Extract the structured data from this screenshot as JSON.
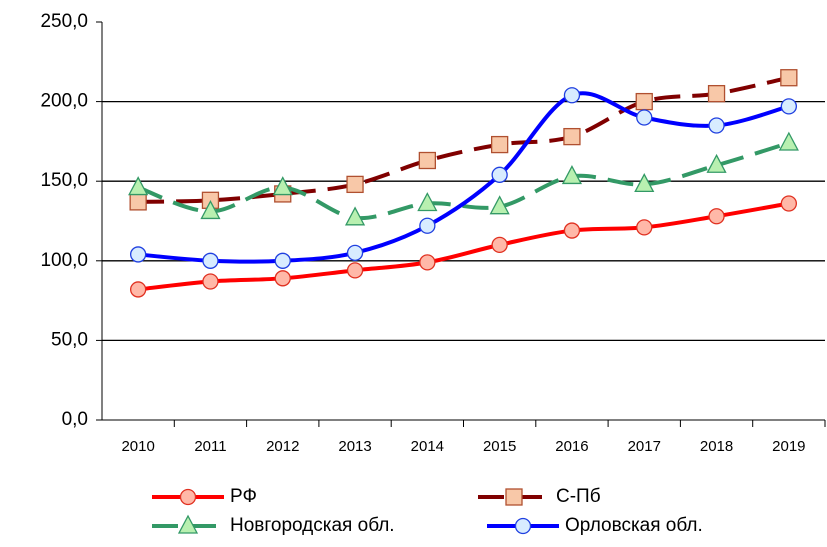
{
  "chart_data": {
    "type": "line",
    "categories": [
      "2010",
      "2011",
      "2012",
      "2013",
      "2014",
      "2015",
      "2016",
      "2017",
      "2018",
      "2019"
    ],
    "series": [
      {
        "name": "РФ",
        "color": "#ff0000",
        "marker": "circle",
        "marker_fill": "#ffb8a8",
        "marker_stroke": "#e03020",
        "dashed": false,
        "values": [
          82,
          87,
          89,
          94,
          99,
          110,
          119,
          121,
          128,
          136
        ]
      },
      {
        "name": "С-Пб",
        "color": "#800000",
        "marker": "square",
        "marker_fill": "#f8c8a8",
        "marker_stroke": "#b05030",
        "dashed": true,
        "values": [
          137,
          138,
          142,
          148,
          163,
          173,
          178,
          200,
          205,
          215
        ]
      },
      {
        "name": "Новгородская обл.",
        "color": "#339966",
        "marker": "triangle",
        "marker_fill": "#b8f0b0",
        "marker_stroke": "#339966",
        "dashed": true,
        "values": [
          146,
          131,
          146,
          127,
          136,
          134,
          153,
          148,
          160,
          174
        ]
      },
      {
        "name": "Орловская обл.",
        "color": "#0000ff",
        "marker": "circle",
        "marker_fill": "#d8ecff",
        "marker_stroke": "#2040e0",
        "dashed": false,
        "values": [
          104,
          100,
          100,
          105,
          122,
          154,
          204,
          190,
          185,
          197
        ]
      }
    ],
    "ylim": [
      0,
      250
    ],
    "yticks": [
      {
        "value": 0,
        "label": "0,0"
      },
      {
        "value": 50,
        "label": "50,0"
      },
      {
        "value": 100,
        "label": "100,0"
      },
      {
        "value": 150,
        "label": "150,0"
      },
      {
        "value": 200,
        "label": "200,0"
      },
      {
        "value": 250,
        "label": "250,0"
      }
    ],
    "grid": true,
    "legend": "bottom",
    "smooth": true
  }
}
